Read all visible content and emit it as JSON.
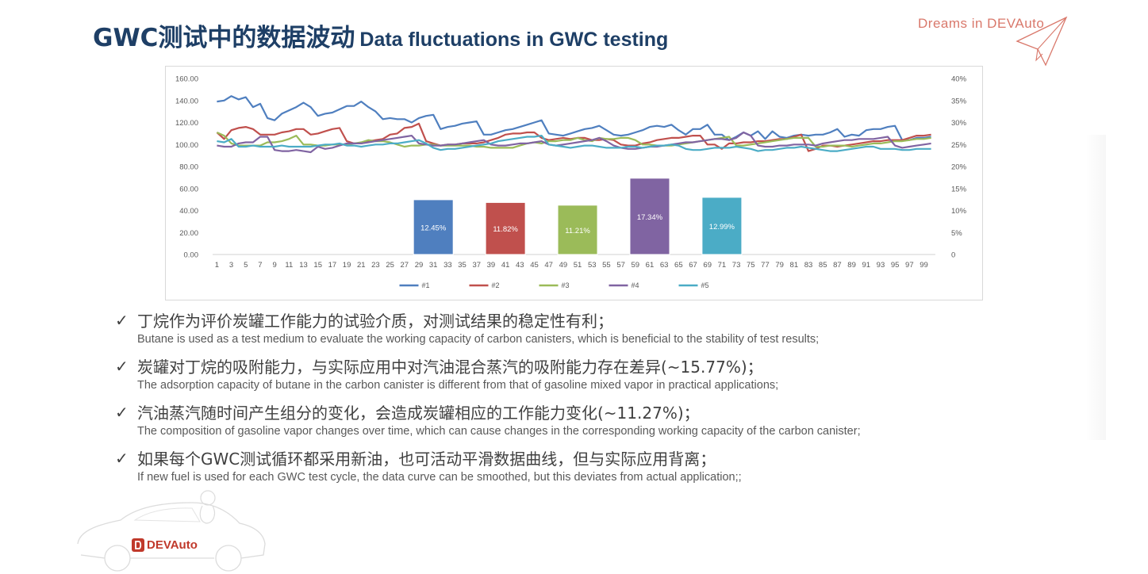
{
  "title": {
    "zh": "GWC测试中的数据波动",
    "en": "Data fluctuations in GWC testing"
  },
  "brand": {
    "top": "Dreams in DEVAuto",
    "logo": "DEVAuto",
    "logo_icon": "devauto-logo-icon",
    "plane_icon": "paper-plane-icon"
  },
  "bullets": [
    {
      "zh": "丁烷作为评价炭罐工作能力的试验介质，对测试结果的稳定性有利；",
      "en": "Butane is used as a test medium to evaluate the working capacity of carbon canisters, which is beneficial to the stability of test results;"
    },
    {
      "zh": "炭罐对丁烷的吸附能力，与实际应用中对汽油混合蒸汽的吸附能力存在差异(~15.77%)；",
      "en": "The adsorption capacity of butane in the carbon canister is different from that of gasoline mixed vapor in practical applications;"
    },
    {
      "zh": "汽油蒸汽随时间产生组分的变化，会造成炭罐相应的工作能力变化(~11.27%)；",
      "en": "The composition of gasoline vapor changes over time, which can cause changes in the corresponding working capacity of the carbon canister;"
    },
    {
      "zh": "如果每个GWC测试循环都采用新油，也可活动平滑数据曲线，但与实际应用背离；",
      "en": "If new fuel is used for each GWC test cycle, the data curve can be smoothed, but this deviates from actual application;;"
    }
  ],
  "check_symbol": "✓",
  "chart_data": {
    "type": "line",
    "x": [
      1,
      2,
      3,
      4,
      5,
      6,
      7,
      8,
      9,
      10,
      11,
      12,
      13,
      14,
      15,
      16,
      17,
      18,
      19,
      20,
      21,
      22,
      23,
      24,
      25,
      26,
      27,
      28,
      29,
      30,
      31,
      32,
      33,
      34,
      35,
      36,
      37,
      38,
      39,
      40,
      41,
      42,
      43,
      44,
      45,
      46,
      47,
      48,
      49,
      50,
      51,
      52,
      53,
      54,
      55,
      56,
      57,
      58,
      59,
      60,
      61,
      62,
      63,
      64,
      65,
      66,
      67,
      68,
      69,
      70,
      71,
      72,
      73,
      74,
      75,
      76,
      77,
      78,
      79,
      80,
      81,
      82,
      83,
      84,
      85,
      86,
      87,
      88,
      89,
      90,
      91,
      92,
      93,
      94,
      95,
      96,
      97,
      98,
      99,
      100
    ],
    "x_tick_labels": [
      "1",
      "3",
      "5",
      "7",
      "9",
      "11",
      "13",
      "15",
      "17",
      "19",
      "21",
      "23",
      "25",
      "27",
      "29",
      "31",
      "33",
      "35",
      "37",
      "39",
      "41",
      "43",
      "45",
      "47",
      "49",
      "51",
      "53",
      "55",
      "57",
      "59",
      "61",
      "63",
      "65",
      "67",
      "69",
      "71",
      "73",
      "75",
      "77",
      "79",
      "81",
      "83",
      "85",
      "87",
      "89",
      "91",
      "93",
      "95",
      "97",
      "99"
    ],
    "ylim_left": [
      0,
      160
    ],
    "left_ticks": [
      "0.00",
      "20.00",
      "40.00",
      "60.00",
      "80.00",
      "100.00",
      "120.00",
      "140.00",
      "160.00"
    ],
    "ylim_right": [
      0,
      40
    ],
    "right_ticks": [
      "0",
      "5%",
      "10%",
      "15%",
      "20%",
      "25%",
      "30%",
      "35%",
      "40%"
    ],
    "series": [
      {
        "name": "#1",
        "color": "#4f7fbf",
        "values": [
          139,
          140,
          144,
          141,
          143,
          134,
          137,
          124,
          122,
          128,
          131,
          134,
          138,
          134,
          126,
          128,
          129,
          132,
          135,
          135,
          139,
          134,
          130,
          123,
          124,
          123,
          123,
          120,
          124,
          126,
          127,
          114,
          116,
          117,
          119,
          120,
          121,
          109,
          109,
          111,
          113,
          114,
          116,
          118,
          120,
          122,
          110,
          109,
          108,
          110,
          112,
          114,
          115,
          117,
          113,
          109,
          108,
          109,
          111,
          113,
          116,
          117,
          116,
          118,
          113,
          109,
          114,
          114,
          118,
          109,
          109,
          104,
          107,
          111,
          108,
          112,
          105,
          112,
          107,
          106,
          108,
          109,
          108,
          109,
          109,
          111,
          114,
          107,
          109,
          108,
          113,
          114,
          114,
          116,
          117,
          104,
          104,
          106,
          106,
          107
        ]
      },
      {
        "name": "#2",
        "color": "#c0504d",
        "values": [
          111,
          105,
          113,
          115,
          116,
          114,
          109,
          109,
          109,
          111,
          112,
          114,
          114,
          109,
          110,
          112,
          114,
          115,
          103,
          101,
          101,
          103,
          104,
          105,
          109,
          110,
          115,
          116,
          119,
          103,
          101,
          99,
          100,
          100,
          101,
          101,
          101,
          102,
          104,
          106,
          109,
          110,
          110,
          111,
          111,
          106,
          104,
          105,
          106,
          105,
          106,
          106,
          104,
          104,
          105,
          104,
          100,
          99,
          99,
          101,
          102,
          104,
          105,
          106,
          106,
          107,
          108,
          108,
          100,
          100,
          96,
          101,
          101,
          102,
          102,
          103,
          103,
          104,
          105,
          105,
          107,
          109,
          94,
          96,
          99,
          99,
          98,
          99,
          100,
          101,
          102,
          103,
          103,
          104,
          104,
          104,
          106,
          108,
          108,
          109
        ]
      },
      {
        "name": "#3",
        "color": "#9bbb59",
        "values": [
          111,
          108,
          101,
          99,
          99,
          99,
          99,
          102,
          102,
          103,
          105,
          108,
          100,
          100,
          99,
          99,
          100,
          100,
          100,
          101,
          102,
          104,
          103,
          103,
          102,
          100,
          98,
          99,
          99,
          100,
          100,
          99,
          99,
          99,
          99,
          99,
          98,
          98,
          97,
          97,
          97,
          97,
          99,
          101,
          102,
          101,
          103,
          103,
          104,
          104,
          106,
          104,
          103,
          106,
          105,
          105,
          106,
          106,
          104,
          100,
          100,
          99,
          99,
          99,
          100,
          101,
          102,
          103,
          104,
          105,
          106,
          107,
          99,
          99,
          100,
          101,
          102,
          103,
          104,
          105,
          106,
          106,
          106,
          98,
          98,
          99,
          99,
          99,
          98,
          99,
          100,
          101,
          101,
          102,
          103,
          103,
          104,
          105,
          105,
          106
        ]
      },
      {
        "name": "#4",
        "color": "#8064a2",
        "values": [
          99,
          98,
          98,
          101,
          102,
          102,
          107,
          107,
          95,
          94,
          94,
          95,
          94,
          93,
          98,
          96,
          97,
          99,
          101,
          101,
          101,
          102,
          103,
          104,
          105,
          106,
          107,
          108,
          101,
          100,
          99,
          99,
          100,
          100,
          101,
          102,
          103,
          104,
          100,
          99,
          99,
          100,
          101,
          101,
          102,
          103,
          100,
          99,
          100,
          101,
          102,
          103,
          104,
          106,
          103,
          99,
          97,
          96,
          96,
          97,
          98,
          98,
          99,
          100,
          101,
          102,
          102,
          103,
          104,
          105,
          105,
          104,
          106,
          111,
          108,
          99,
          98,
          98,
          99,
          99,
          100,
          100,
          100,
          99,
          101,
          102,
          103,
          104,
          104,
          105,
          105,
          105,
          106,
          107,
          99,
          97,
          98,
          99,
          100,
          101
        ]
      },
      {
        "name": "#5",
        "color": "#4bacc6",
        "values": [
          103,
          102,
          105,
          98,
          98,
          99,
          98,
          98,
          98,
          99,
          98,
          98,
          98,
          98,
          99,
          100,
          100,
          101,
          99,
          99,
          98,
          99,
          100,
          100,
          101,
          101,
          102,
          103,
          104,
          101,
          97,
          95,
          96,
          96,
          97,
          98,
          99,
          100,
          101,
          103,
          104,
          105,
          106,
          107,
          107,
          108,
          100,
          99,
          98,
          97,
          98,
          99,
          99,
          98,
          97,
          97,
          97,
          98,
          98,
          97,
          98,
          99,
          99,
          100,
          99,
          96,
          95,
          95,
          96,
          97,
          97,
          97,
          98,
          97,
          96,
          94,
          95,
          95,
          96,
          97,
          97,
          98,
          97,
          96,
          95,
          94,
          94,
          95,
          96,
          97,
          98,
          98,
          96,
          96,
          96,
          95,
          95,
          96,
          96,
          96
        ]
      }
    ],
    "bars": [
      {
        "series": "#1",
        "color": "#4f7fbf",
        "center_x": 31,
        "value_pct": 12.45,
        "label": "12.45%"
      },
      {
        "series": "#2",
        "color": "#c0504d",
        "center_x": 41,
        "value_pct": 11.82,
        "label": "11.82%"
      },
      {
        "series": "#3",
        "color": "#9bbb59",
        "center_x": 51,
        "value_pct": 11.21,
        "label": "11.21%"
      },
      {
        "series": "#4",
        "color": "#8064a2",
        "center_x": 61,
        "value_pct": 17.34,
        "label": "17.34%"
      },
      {
        "series": "#5",
        "color": "#4bacc6",
        "center_x": 71,
        "value_pct": 12.99,
        "label": "12.99%"
      }
    ],
    "legend_position": "bottom",
    "grid": false
  }
}
